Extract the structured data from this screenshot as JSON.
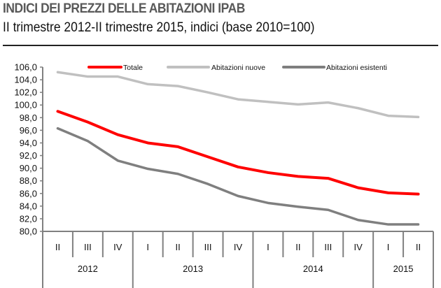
{
  "header": {
    "title": "INDICI DEI PREZZI DELLE ABITAZIONI IPAB",
    "subtitle": "II trimestre 2012-II trimestre 2015, indici (base 2010=100)"
  },
  "chart_data": {
    "type": "line",
    "categories": [
      "II",
      "III",
      "IV",
      "I",
      "II",
      "III",
      "IV",
      "I",
      "II",
      "III",
      "IV",
      "I",
      "II"
    ],
    "years": [
      {
        "label": "2012",
        "span": 3
      },
      {
        "label": "2013",
        "span": 4
      },
      {
        "label": "2014",
        "span": 4
      },
      {
        "label": "2015",
        "span": 2
      }
    ],
    "ylim": [
      80,
      106
    ],
    "yticks": [
      "80,0",
      "82,0",
      "84,0",
      "86,0",
      "88,0",
      "90,0",
      "92,0",
      "94,0",
      "96,0",
      "98,0",
      "100,0",
      "102,0",
      "104,0",
      "106,0"
    ],
    "legend_position": "top",
    "grid": false,
    "series": [
      {
        "name": "Totale",
        "color": "#ff0000",
        "values": [
          99.0,
          97.3,
          95.3,
          94.0,
          93.4,
          91.8,
          90.2,
          89.3,
          88.7,
          88.4,
          86.9,
          86.1,
          85.9
        ]
      },
      {
        "name": "Abitazioni nuove",
        "color": "#c0c0c0",
        "values": [
          105.2,
          104.5,
          104.5,
          103.3,
          103.0,
          102.0,
          100.9,
          100.5,
          100.1,
          100.4,
          99.5,
          98.3,
          98.1
        ]
      },
      {
        "name": "Abitazioni esistenti",
        "color": "#7f7f7f",
        "values": [
          96.3,
          94.3,
          91.2,
          89.9,
          89.1,
          87.5,
          85.6,
          84.5,
          83.9,
          83.4,
          81.8,
          81.1,
          81.1
        ]
      }
    ]
  }
}
